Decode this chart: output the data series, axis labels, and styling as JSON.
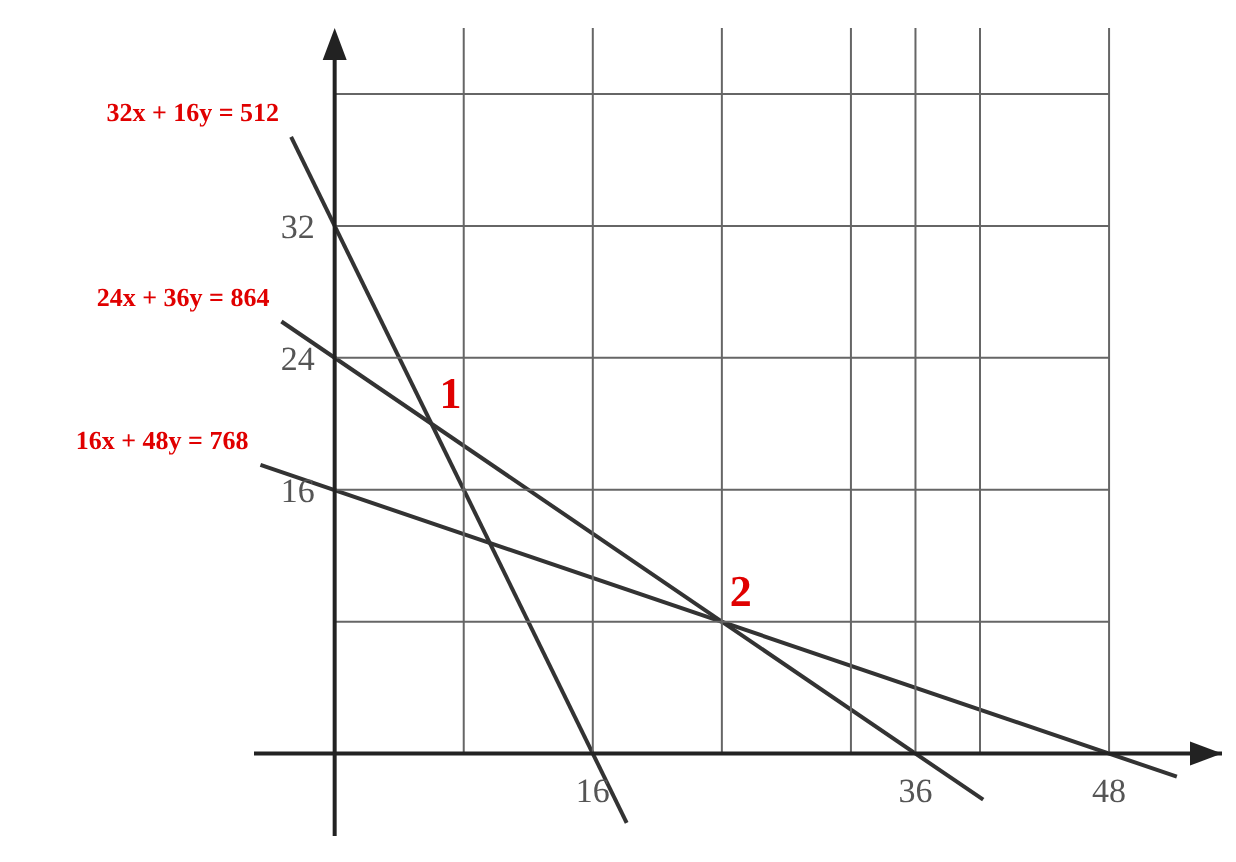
{
  "chart_data": {
    "type": "line",
    "xlim": [
      -5,
      55
    ],
    "ylim": [
      -5,
      44
    ],
    "xticks": [
      {
        "value": 8,
        "label": null
      },
      16,
      {
        "value": 24,
        "label": null
      },
      {
        "value": 32,
        "label": null
      },
      36,
      {
        "value": 40,
        "label": null
      },
      48
    ],
    "yticks": [
      {
        "value": 8,
        "label": null
      },
      16,
      24,
      32,
      {
        "value": 40,
        "label": null
      }
    ],
    "grid": true,
    "series": [
      {
        "name": "32x + 16y = 512",
        "color": "#333333",
        "x": [
          -2.7,
          18.1
        ],
        "values": [
          37.4,
          -4.2
        ]
      },
      {
        "name": "24x + 36y = 864",
        "color": "#333333",
        "x": [
          -3.3,
          40.2
        ],
        "values": [
          26.2,
          -2.8
        ]
      },
      {
        "name": "16x + 48y = 768",
        "color": "#333333",
        "x": [
          -4.6,
          52.2
        ],
        "values": [
          17.5,
          -1.4
        ]
      }
    ],
    "annotations": [
      {
        "text": "1",
        "x": 6,
        "y": 20
      },
      {
        "text": "2",
        "x": 24,
        "y": 8
      }
    ]
  }
}
